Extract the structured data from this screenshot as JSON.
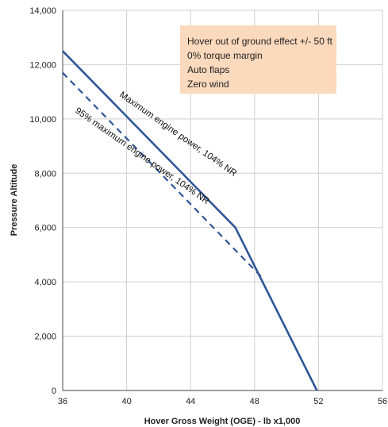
{
  "chart_data": {
    "type": "line",
    "xlabel": "Hover Gross Weight (OGE) - lb x1,000",
    "ylabel": "Pressure Altitude",
    "xlim": [
      36,
      56
    ],
    "ylim": [
      0,
      14000
    ],
    "x_ticks": [
      "36",
      "40",
      "44",
      "48",
      "52",
      "56"
    ],
    "y_ticks": [
      "0",
      "2,000",
      "4,000",
      "6,000",
      "8,000",
      "10,000",
      "12,000",
      "14,000"
    ],
    "grid": true,
    "legend": "none",
    "annotation_box": {
      "lines": [
        "Hover out of ground effect +/- 50 ft",
        "0% torque margin",
        "Auto flaps",
        "Zero wind"
      ],
      "fill_color": "#fbd9bd"
    },
    "series": [
      {
        "name": "Maximum engine power, 104% NR",
        "style": "solid",
        "color": "#2f5597",
        "points": [
          [
            36,
            12500
          ],
          [
            46.8,
            6000
          ],
          [
            51.9,
            0
          ]
        ]
      },
      {
        "name": "95% maximum engine power, 104% NR",
        "style": "dashed",
        "color": "#2f5597",
        "points": [
          [
            36,
            11700
          ],
          [
            48.4,
            4200
          ]
        ]
      }
    ]
  }
}
